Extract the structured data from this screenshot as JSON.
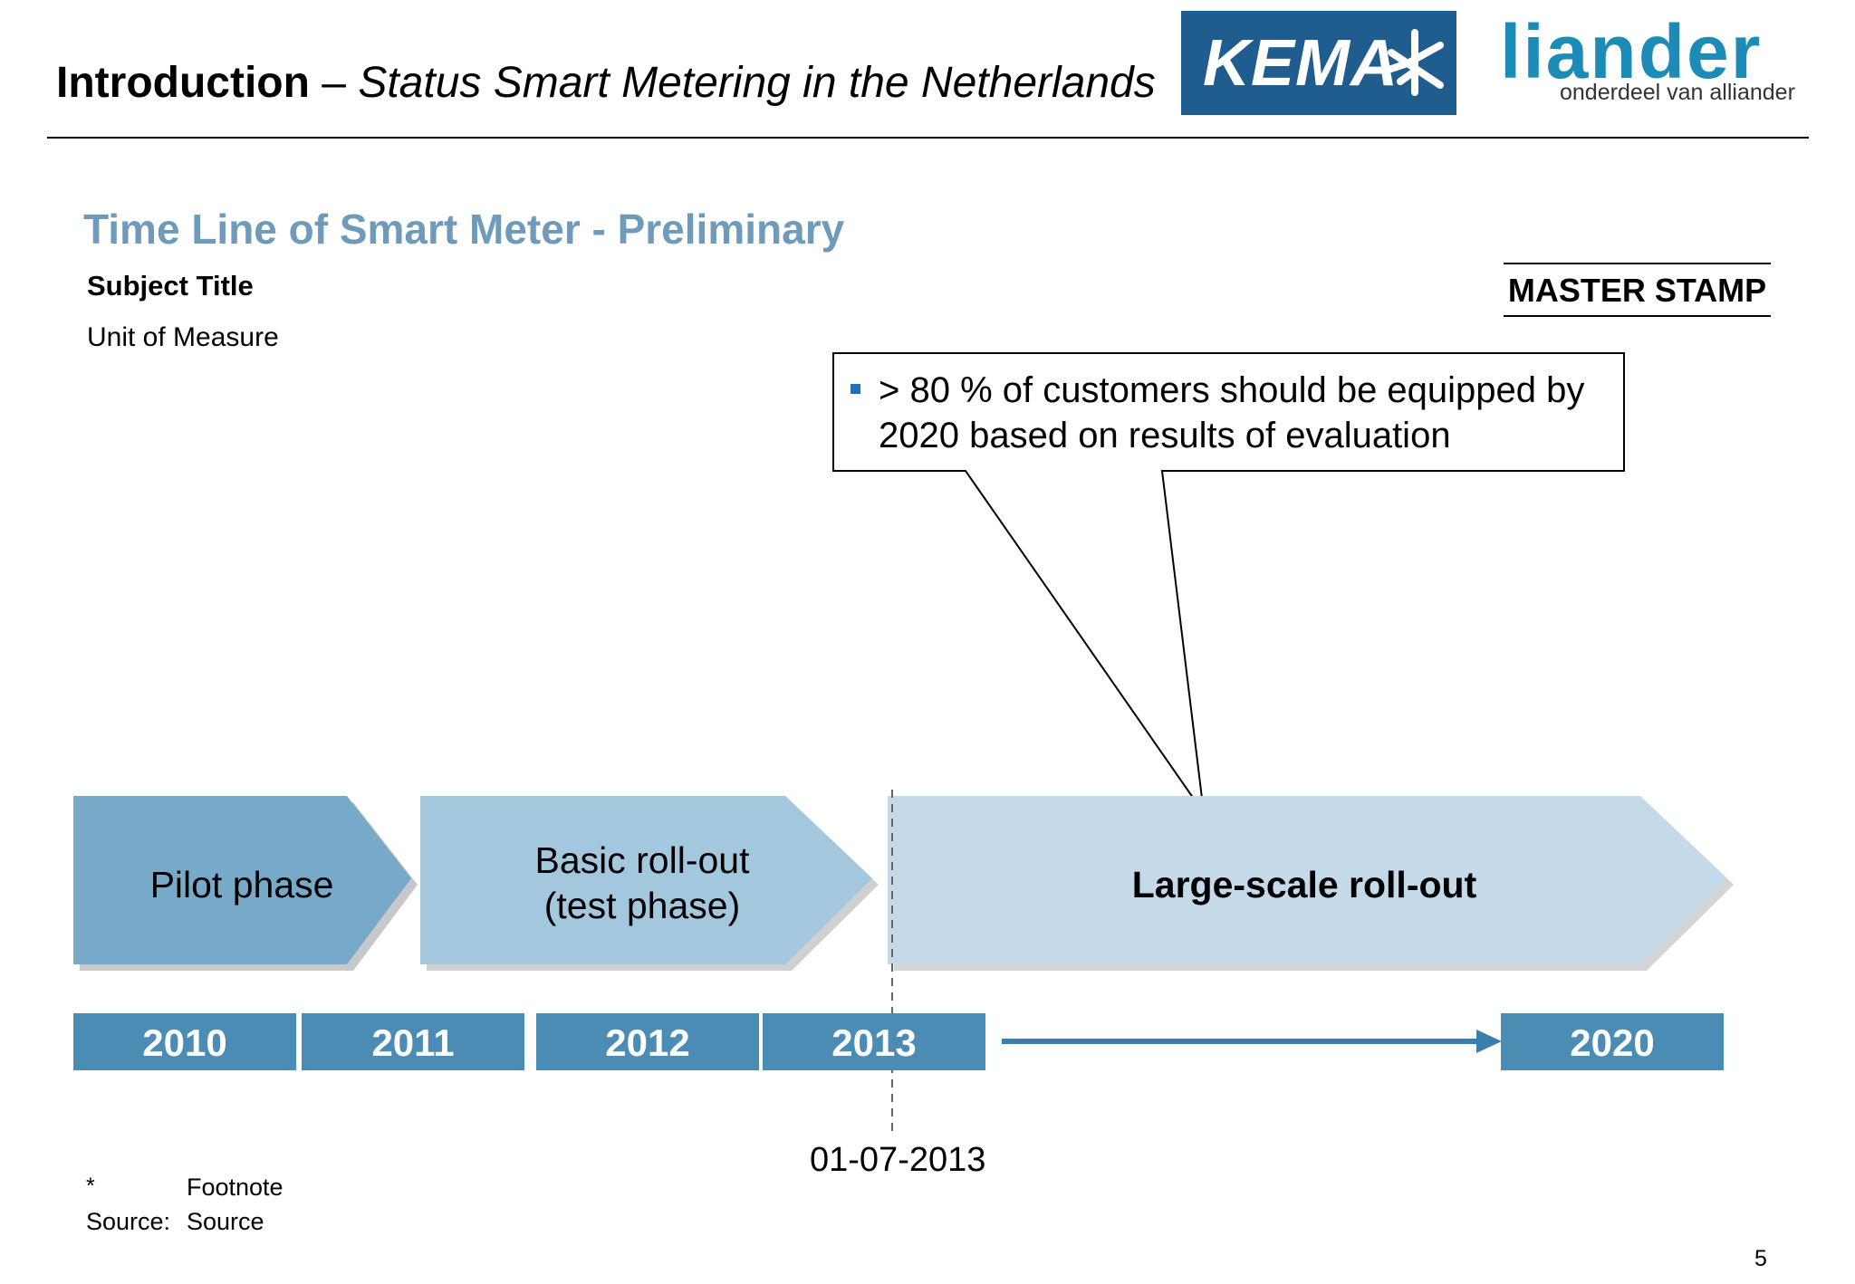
{
  "header": {
    "title_bold": "Introduction",
    "title_sep": " – ",
    "title_italic": "Status Smart Metering in the Netherlands"
  },
  "logos": {
    "kema": "KEMA",
    "liander_name": "liander",
    "liander_sub": "onderdeel van alliander"
  },
  "slide": {
    "title": "Time Line of Smart Meter - Preliminary",
    "subject_title": "Subject Title",
    "unit_of_measure": "Unit of Measure",
    "master_stamp": "MASTER STAMP"
  },
  "callout": {
    "text": "> 80 % of customers should be equipped by 2020 based on results of evaluation"
  },
  "phases": [
    {
      "line1": "Pilot phase",
      "line2": ""
    },
    {
      "line1": "Basic roll-out",
      "line2": "(test phase)"
    },
    {
      "line1": "Large-scale roll-out",
      "line2": ""
    }
  ],
  "years": [
    "2010",
    "2011",
    "2012",
    "2013",
    "2020"
  ],
  "marker_date": "01-07-2013",
  "footer": {
    "footnote_marker": "*",
    "footnote": "Footnote",
    "source_label": "Source:",
    "source": "Source",
    "page": "5"
  },
  "colors": {
    "pilot": "#77a9c8",
    "basic": "#a3c7dc",
    "large": "#c5dae8",
    "year": "#4a8cb4",
    "title": "#6f9bba",
    "kema": "#1f5d8f",
    "liander": "#1c8bb6"
  }
}
